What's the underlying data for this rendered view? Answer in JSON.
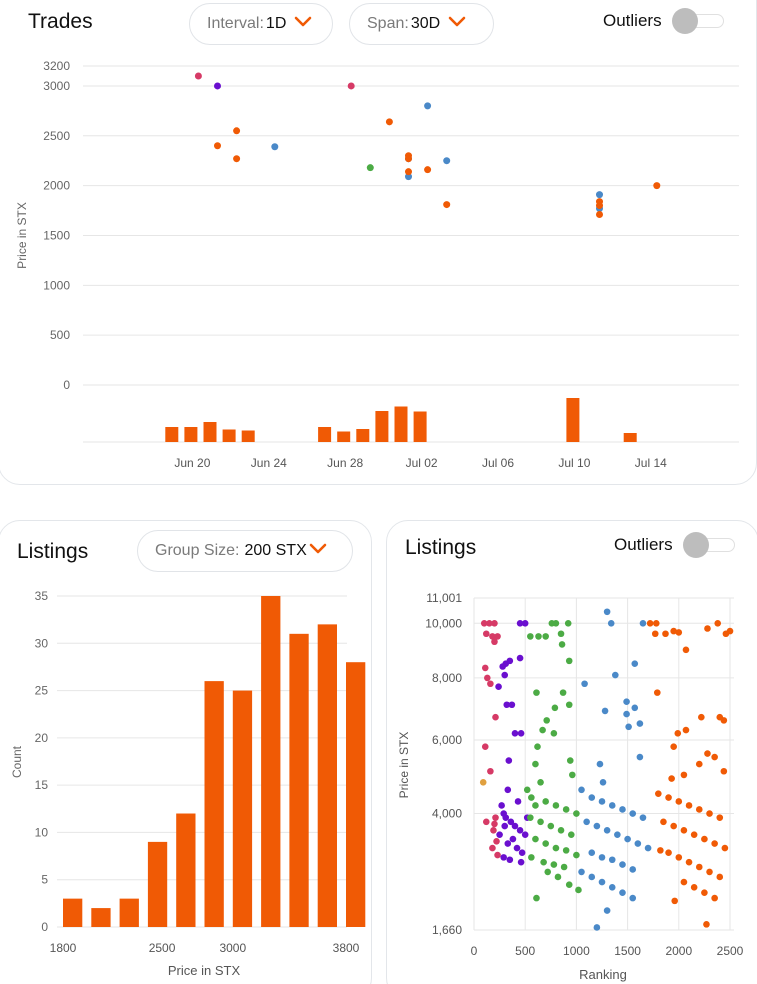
{
  "trades": {
    "title": "Trades",
    "interval": {
      "label": "Interval:",
      "value": "1D"
    },
    "span": {
      "label": "Span:",
      "value": "30D"
    },
    "outliers_label": "Outliers"
  },
  "listings_hist": {
    "title": "Listings",
    "group_size": {
      "label": "Group Size:",
      "value": "200 STX"
    }
  },
  "listings_scatter": {
    "title": "Listings",
    "outliers_label": "Outliers"
  },
  "colors": {
    "orange": "#f05a05",
    "blue": "#4a89c8",
    "green": "#4cab45",
    "purple": "#6a0fcf",
    "pink": "#d63a66",
    "gold": "#e0a040",
    "grid": "#e6e6e6"
  },
  "chart_data": [
    {
      "id": "trades",
      "type": "scatter",
      "ylabel": "Price in STX",
      "yticks": [
        0,
        500,
        1000,
        1500,
        2000,
        2500,
        3000,
        3200
      ],
      "xticks": [
        "Jun 20",
        "Jun 24",
        "Jun 28",
        "Jul 02",
        "Jul 06",
        "Jul 10",
        "Jul 14"
      ],
      "ylim": [
        0,
        3200
      ],
      "x_start": "Jun 16",
      "points": [
        {
          "x": "Jun 20",
          "y": 3100,
          "c": "pink"
        },
        {
          "x": "Jun 21",
          "y": 3000,
          "c": "purple"
        },
        {
          "x": "Jun 21",
          "y": 2400,
          "c": "orange"
        },
        {
          "x": "Jun 22",
          "y": 2550,
          "c": "orange"
        },
        {
          "x": "Jun 22",
          "y": 2270,
          "c": "orange"
        },
        {
          "x": "Jun 24",
          "y": 2390,
          "c": "blue"
        },
        {
          "x": "Jun 28",
          "y": 3000,
          "c": "pink"
        },
        {
          "x": "Jun 29",
          "y": 2180,
          "c": "green"
        },
        {
          "x": "Jun 30",
          "y": 2640,
          "c": "orange"
        },
        {
          "x": "Jul 01",
          "y": 2090,
          "c": "blue"
        },
        {
          "x": "Jul 01",
          "y": 2140,
          "c": "orange"
        },
        {
          "x": "Jul 01",
          "y": 2270,
          "c": "blue"
        },
        {
          "x": "Jul 01",
          "y": 2300,
          "c": "orange"
        },
        {
          "x": "Jul 01",
          "y": 2270,
          "c": "orange"
        },
        {
          "x": "Jul 02",
          "y": 2800,
          "c": "blue"
        },
        {
          "x": "Jul 02",
          "y": 2160,
          "c": "orange"
        },
        {
          "x": "Jul 03",
          "y": 1810,
          "c": "orange"
        },
        {
          "x": "Jul 03",
          "y": 2250,
          "c": "blue"
        },
        {
          "x": "Jul 11",
          "y": 1910,
          "c": "blue"
        },
        {
          "x": "Jul 11",
          "y": 1770,
          "c": "blue"
        },
        {
          "x": "Jul 11",
          "y": 1840,
          "c": "orange"
        },
        {
          "x": "Jul 11",
          "y": 1800,
          "c": "orange"
        },
        {
          "x": "Jul 11",
          "y": 1710,
          "c": "orange"
        },
        {
          "x": "Jul 14",
          "y": 2000,
          "c": "orange"
        }
      ],
      "volume": {
        "color": "orange",
        "bars": [
          {
            "x": "Jun 19",
            "v": 3
          },
          {
            "x": "Jun 20",
            "v": 3
          },
          {
            "x": "Jun 21",
            "v": 4
          },
          {
            "x": "Jun 22",
            "v": 2.5
          },
          {
            "x": "Jun 23",
            "v": 2.3
          },
          {
            "x": "Jun 27",
            "v": 3
          },
          {
            "x": "Jun 28",
            "v": 2.1
          },
          {
            "x": "Jun 29",
            "v": 2.6
          },
          {
            "x": "Jun 30",
            "v": 6.2
          },
          {
            "x": "Jul 01",
            "v": 7.1
          },
          {
            "x": "Jul 02",
            "v": 6.1
          },
          {
            "x": "Jul 10",
            "v": 8.8
          },
          {
            "x": "Jul 13",
            "v": 1.8
          }
        ]
      }
    },
    {
      "id": "histogram",
      "type": "bar",
      "xlabel": "Price in STX",
      "ylabel": "Count",
      "ylim": [
        0,
        35
      ],
      "yticks": [
        0,
        5,
        10,
        15,
        20,
        25,
        30,
        35
      ],
      "xticks": [
        1800,
        2500,
        3000,
        3800
      ],
      "bins": [
        {
          "x0": 1800,
          "x1": 2000,
          "count": 3
        },
        {
          "x0": 2000,
          "x1": 2200,
          "count": 2
        },
        {
          "x0": 2200,
          "x1": 2400,
          "count": 3
        },
        {
          "x0": 2400,
          "x1": 2600,
          "count": 9
        },
        {
          "x0": 2600,
          "x1": 2800,
          "count": 12
        },
        {
          "x0": 2800,
          "x1": 3000,
          "count": 26
        },
        {
          "x0": 3000,
          "x1": 3200,
          "count": 25
        },
        {
          "x0": 3200,
          "x1": 3400,
          "count": 35
        },
        {
          "x0": 3400,
          "x1": 3600,
          "count": 31
        },
        {
          "x0": 3600,
          "x1": 3800,
          "count": 32
        },
        {
          "x0": 3800,
          "x1": 4000,
          "count": 28
        }
      ]
    },
    {
      "id": "listings-scatter",
      "type": "scatter",
      "xlabel": "Ranking",
      "ylabel": "Price in STX",
      "xlim": [
        0,
        2500
      ],
      "ylim": [
        1660,
        11001
      ],
      "xticks": [
        0,
        500,
        1000,
        1500,
        2000,
        2500
      ],
      "yticks": [
        1660,
        4000,
        6000,
        8000,
        10000,
        11001
      ],
      "ytick_labels": [
        "1,660",
        "4,000",
        "6,000",
        "8,000",
        "10,000",
        "11,001"
      ],
      "scale": "sqrt",
      "groups": [
        {
          "c": "pink",
          "points": [
            [
              100,
              10000
            ],
            [
              150,
              10000
            ],
            [
              200,
              10000
            ],
            [
              120,
              9600
            ],
            [
              180,
              9500
            ],
            [
              230,
              9500
            ],
            [
              200,
              9300
            ],
            [
              110,
              8350
            ],
            [
              130,
              8000
            ],
            [
              160,
              7800
            ],
            [
              210,
              6700
            ],
            [
              110,
              5800
            ],
            [
              160,
              5100
            ],
            [
              120,
              3800
            ],
            [
              200,
              3750
            ],
            [
              210,
              3900
            ],
            [
              190,
              3600
            ],
            [
              180,
              3200
            ],
            [
              220,
              3350
            ],
            [
              230,
              3050
            ]
          ]
        },
        {
          "c": "gold",
          "points": [
            [
              90,
              4800
            ]
          ]
        },
        {
          "c": "purple",
          "points": [
            [
              450,
              10000
            ],
            [
              500,
              10000
            ],
            [
              310,
              8500
            ],
            [
              350,
              8600
            ],
            [
              280,
              8400
            ],
            [
              450,
              8700
            ],
            [
              300,
              8100
            ],
            [
              240,
              7700
            ],
            [
              320,
              7100
            ],
            [
              370,
              7100
            ],
            [
              400,
              6200
            ],
            [
              340,
              5400
            ],
            [
              460,
              6200
            ],
            [
              330,
              4600
            ],
            [
              430,
              4300
            ],
            [
              270,
              4200
            ],
            [
              290,
              4000
            ],
            [
              310,
              3900
            ],
            [
              360,
              3800
            ],
            [
              400,
              3700
            ],
            [
              450,
              3600
            ],
            [
              500,
              3500
            ],
            [
              380,
              3400
            ],
            [
              330,
              3300
            ],
            [
              420,
              3200
            ],
            [
              470,
              3100
            ],
            [
              290,
              3000
            ],
            [
              350,
              2950
            ],
            [
              460,
              2900
            ],
            [
              300,
              3700
            ],
            [
              520,
              3900
            ],
            [
              250,
              3500
            ]
          ]
        },
        {
          "c": "green",
          "points": [
            [
              760,
              10000
            ],
            [
              800,
              10000
            ],
            [
              920,
              10000
            ],
            [
              550,
              9500
            ],
            [
              700,
              9500
            ],
            [
              850,
              9600
            ],
            [
              860,
              9200
            ],
            [
              630,
              9500
            ],
            [
              930,
              8600
            ],
            [
              870,
              7500
            ],
            [
              790,
              7000
            ],
            [
              610,
              7500
            ],
            [
              930,
              7100
            ],
            [
              780,
              6200
            ],
            [
              670,
              6300
            ],
            [
              710,
              6600
            ],
            [
              620,
              5800
            ],
            [
              600,
              5300
            ],
            [
              940,
              5400
            ],
            [
              960,
              5000
            ],
            [
              650,
              4800
            ],
            [
              520,
              4600
            ],
            [
              560,
              4400
            ],
            [
              600,
              4200
            ],
            [
              700,
              4300
            ],
            [
              800,
              4200
            ],
            [
              900,
              4100
            ],
            [
              1000,
              4000
            ],
            [
              550,
              3900
            ],
            [
              650,
              3800
            ],
            [
              750,
              3700
            ],
            [
              850,
              3600
            ],
            [
              950,
              3500
            ],
            [
              600,
              3400
            ],
            [
              700,
              3300
            ],
            [
              800,
              3200
            ],
            [
              900,
              3150
            ],
            [
              1000,
              3050
            ],
            [
              560,
              3000
            ],
            [
              680,
              2900
            ],
            [
              780,
              2850
            ],
            [
              880,
              2800
            ],
            [
              720,
              2700
            ],
            [
              820,
              2600
            ],
            [
              930,
              2450
            ],
            [
              1020,
              2350
            ],
            [
              610,
              2200
            ]
          ]
        },
        {
          "c": "blue",
          "points": [
            [
              1300,
              10450
            ],
            [
              1340,
              10000
            ],
            [
              1650,
              10000
            ],
            [
              1570,
              8500
            ],
            [
              1380,
              8100
            ],
            [
              1080,
              7800
            ],
            [
              1490,
              7200
            ],
            [
              1570,
              7000
            ],
            [
              1280,
              6900
            ],
            [
              1490,
              6800
            ],
            [
              1620,
              6500
            ],
            [
              1510,
              6400
            ],
            [
              1620,
              5500
            ],
            [
              1230,
              5300
            ],
            [
              1260,
              4800
            ],
            [
              1050,
              4600
            ],
            [
              1150,
              4400
            ],
            [
              1250,
              4300
            ],
            [
              1350,
              4200
            ],
            [
              1450,
              4100
            ],
            [
              1550,
              4000
            ],
            [
              1650,
              3900
            ],
            [
              1100,
              3800
            ],
            [
              1200,
              3700
            ],
            [
              1300,
              3600
            ],
            [
              1400,
              3500
            ],
            [
              1500,
              3400
            ],
            [
              1600,
              3300
            ],
            [
              1700,
              3200
            ],
            [
              1150,
              3100
            ],
            [
              1250,
              3000
            ],
            [
              1350,
              2950
            ],
            [
              1450,
              2850
            ],
            [
              1550,
              2750
            ],
            [
              1050,
              2700
            ],
            [
              1150,
              2600
            ],
            [
              1250,
              2500
            ],
            [
              1350,
              2400
            ],
            [
              1450,
              2300
            ],
            [
              1550,
              2200
            ],
            [
              1200,
              1700
            ],
            [
              1300,
              1980
            ]
          ]
        },
        {
          "c": "orange",
          "points": [
            [
              1720,
              10000
            ],
            [
              1780,
              10000
            ],
            [
              2380,
              10000
            ],
            [
              1870,
              9600
            ],
            [
              1950,
              9700
            ],
            [
              2000,
              9650
            ],
            [
              2070,
              9000
            ],
            [
              1770,
              9600
            ],
            [
              2280,
              9800
            ],
            [
              2500,
              9700
            ],
            [
              2460,
              9600
            ],
            [
              1790,
              7500
            ],
            [
              2400,
              6700
            ],
            [
              2220,
              6700
            ],
            [
              2440,
              6600
            ],
            [
              1990,
              6200
            ],
            [
              2070,
              6300
            ],
            [
              1950,
              5800
            ],
            [
              2280,
              5600
            ],
            [
              2350,
              5500
            ],
            [
              2200,
              5300
            ],
            [
              2440,
              5100
            ],
            [
              1930,
              4900
            ],
            [
              2050,
              5000
            ],
            [
              1800,
              4500
            ],
            [
              1900,
              4400
            ],
            [
              2000,
              4300
            ],
            [
              2100,
              4200
            ],
            [
              2200,
              4100
            ],
            [
              2300,
              4000
            ],
            [
              2400,
              3900
            ],
            [
              1850,
              3800
            ],
            [
              1950,
              3700
            ],
            [
              2050,
              3600
            ],
            [
              2150,
              3500
            ],
            [
              2250,
              3400
            ],
            [
              2350,
              3300
            ],
            [
              2450,
              3200
            ],
            [
              1900,
              3100
            ],
            [
              2000,
              3000
            ],
            [
              2100,
              2900
            ],
            [
              2200,
              2800
            ],
            [
              2300,
              2700
            ],
            [
              2400,
              2600
            ],
            [
              2050,
              2500
            ],
            [
              2150,
              2400
            ],
            [
              2250,
              2300
            ],
            [
              2350,
              2200
            ],
            [
              2270,
              1750
            ],
            [
              1960,
              2150
            ],
            [
              1820,
              3150
            ]
          ]
        }
      ]
    }
  ]
}
